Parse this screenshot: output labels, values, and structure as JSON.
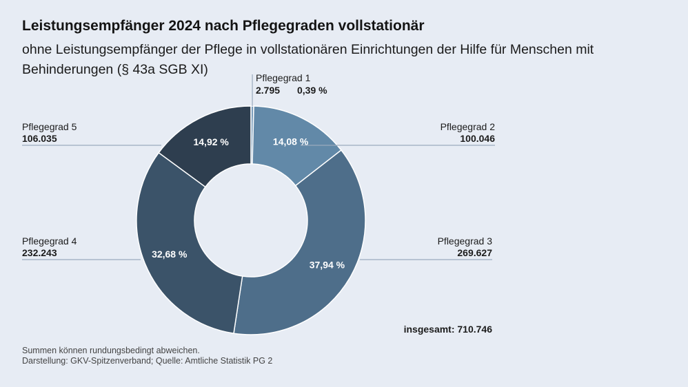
{
  "header": {
    "title": "Leistungsempfänger 2024 nach Pflegegraden vollstationär",
    "subtitle": "ohne Leistungsempfänger der Pflege in vollstationären Einrichtungen der Hilfe für Menschen mit Behinderungen (§ 43a SGB XI)"
  },
  "chart_data": {
    "type": "pie",
    "variant": "donut",
    "title": "Leistungsempfänger 2024 nach Pflegegraden vollstationär",
    "subtitle": "ohne Leistungsempfänger der Pflege in vollstationären Einrichtungen der Hilfe für Menschen mit Behinderungen (§ 43a SGB XI)",
    "slices": [
      {
        "label": "Pflegegrad 1",
        "value": 2795,
        "value_label": "2.795",
        "percent": 0.39,
        "percent_label": "0,39 %",
        "color": "#7a9cba"
      },
      {
        "label": "Pflegegrad 2",
        "value": 100046,
        "value_label": "100.046",
        "percent": 14.08,
        "percent_label": "14,08 %",
        "color": "#6289a8"
      },
      {
        "label": "Pflegegrad 3",
        "value": 269627,
        "value_label": "269.627",
        "percent": 37.94,
        "percent_label": "37,94 %",
        "color": "#4e6e8a"
      },
      {
        "label": "Pflegegrad 4",
        "value": 232243,
        "value_label": "232.243",
        "percent": 32.68,
        "percent_label": "32,68 %",
        "color": "#3b5369"
      },
      {
        "label": "Pflegegrad 5",
        "value": 106035,
        "value_label": "106.035",
        "percent": 14.92,
        "percent_label": "14,92 %",
        "color": "#2e3e4f"
      }
    ],
    "total_label": "insgesamt: 710.746",
    "leader_line_color": "#9aaabd",
    "label_color": "#1b1b1b",
    "percent_text_color": "#ffffff"
  },
  "footer": {
    "note": "Summen können rundungsbedingt abweichen.",
    "source": "Darstellung: GKV-Spitzenverband; Quelle: Amtliche Statistik PG 2"
  }
}
